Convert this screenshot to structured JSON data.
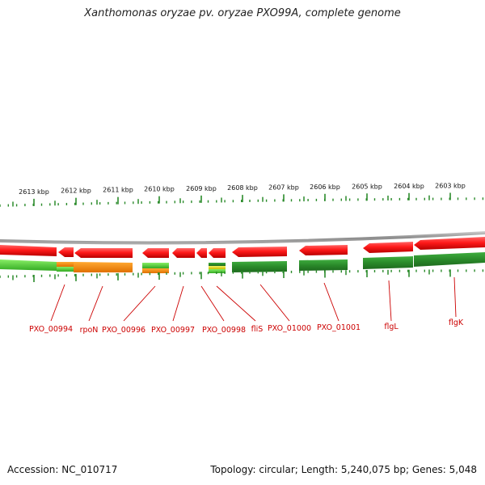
{
  "title": "Xanthomonas oryzae pv. oryzae PXO99A, complete genome",
  "accession": "Accession: NC_010717",
  "summary": "Topology: circular; Length: 5,240,075 bp; Genes: 5,048",
  "colors": {
    "gene_red": "#ff1a1a",
    "gene_red_dark": "#c40000",
    "track_green": "#2f8f2f",
    "track_green_light": "#55cc33",
    "track_orange": "#ff8800",
    "track_yellow": "#e8e020",
    "tick_green": "#2a8a2a",
    "label_red": "#cc0000",
    "backbone_grey": "#8c8c8c"
  },
  "kbp_labels": [
    "2613 kbp",
    "2612 kbp",
    "2611 kbp",
    "2610 kbp",
    "2609 kbp",
    "2608 kbp",
    "2607 kbp",
    "2606 kbp",
    "2605 kbp",
    "2604 kbp",
    "2603 kbp"
  ],
  "gene_labels": [
    "PXO_00994",
    "rpoN",
    "PXO_00996",
    "PXO_00997",
    "PXO_00998",
    "fliS",
    "PXO_01000",
    "PXO_01001",
    "flgL",
    "flgK"
  ]
}
